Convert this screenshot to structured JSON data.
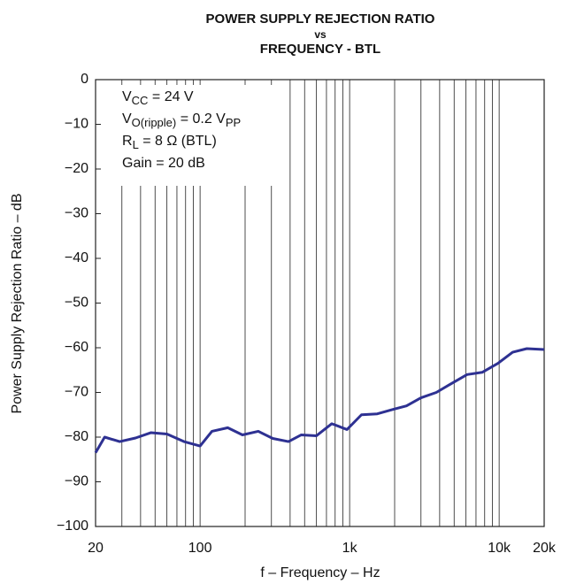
{
  "chart_data": {
    "type": "line",
    "title": [
      "POWER SUPPLY REJECTION RATIO",
      "vs",
      "FREQUENCY - BTL"
    ],
    "xlabel": "f – Frequency – Hz",
    "ylabel": "Power Supply Rejection Ratio – dB",
    "annotations": [
      [
        "V",
        "CC",
        " = 24 V"
      ],
      [
        "V",
        "O(ripple)",
        " = 0.2 V",
        "PP"
      ],
      [
        "R",
        "L",
        " = 8 Ω (BTL)"
      ],
      [
        "Gain = 20 dB"
      ]
    ],
    "xscale": "log",
    "grid": "x",
    "xlim": [
      20,
      20000
    ],
    "ylim": [
      -100,
      0
    ],
    "xticks": [
      20,
      100,
      {
        "value": 1000,
        "label": "1k"
      },
      {
        "value": 10000,
        "label": "10k"
      },
      {
        "value": 20000,
        "label": "20k"
      }
    ],
    "yticks": [
      0,
      {
        "value": -10,
        "label": "−10"
      },
      {
        "value": -20,
        "label": "−20"
      },
      {
        "value": -30,
        "label": "−30"
      },
      {
        "value": -40,
        "label": "−40"
      },
      {
        "value": -50,
        "label": "−50"
      },
      {
        "value": -60,
        "label": "−60"
      },
      {
        "value": -70,
        "label": "−70"
      },
      {
        "value": -80,
        "label": "−80"
      },
      {
        "value": -90,
        "label": "−90"
      },
      {
        "value": -100,
        "label": "−100"
      }
    ],
    "series": [
      {
        "color": "#2e3192",
        "x": [
          20,
          23,
          29,
          37,
          47,
          60,
          78,
          100,
          120,
          153,
          192,
          245,
          306,
          390,
          475,
          600,
          760,
          960,
          1200,
          1530,
          1950,
          2400,
          3000,
          3800,
          4800,
          6100,
          7700,
          9800,
          12300,
          15300,
          20000
        ],
        "values": [
          -83.5,
          -80,
          -81,
          -80.2,
          -79,
          -79.3,
          -81,
          -82,
          -78.7,
          -77.9,
          -79.5,
          -78.7,
          -80.3,
          -81,
          -79.5,
          -79.7,
          -77,
          -78.3,
          -75,
          -74.8,
          -73.8,
          -73,
          -71.2,
          -70,
          -68,
          -66,
          -65.5,
          -63.5,
          -61,
          -60.2,
          -60.4
        ]
      }
    ]
  }
}
